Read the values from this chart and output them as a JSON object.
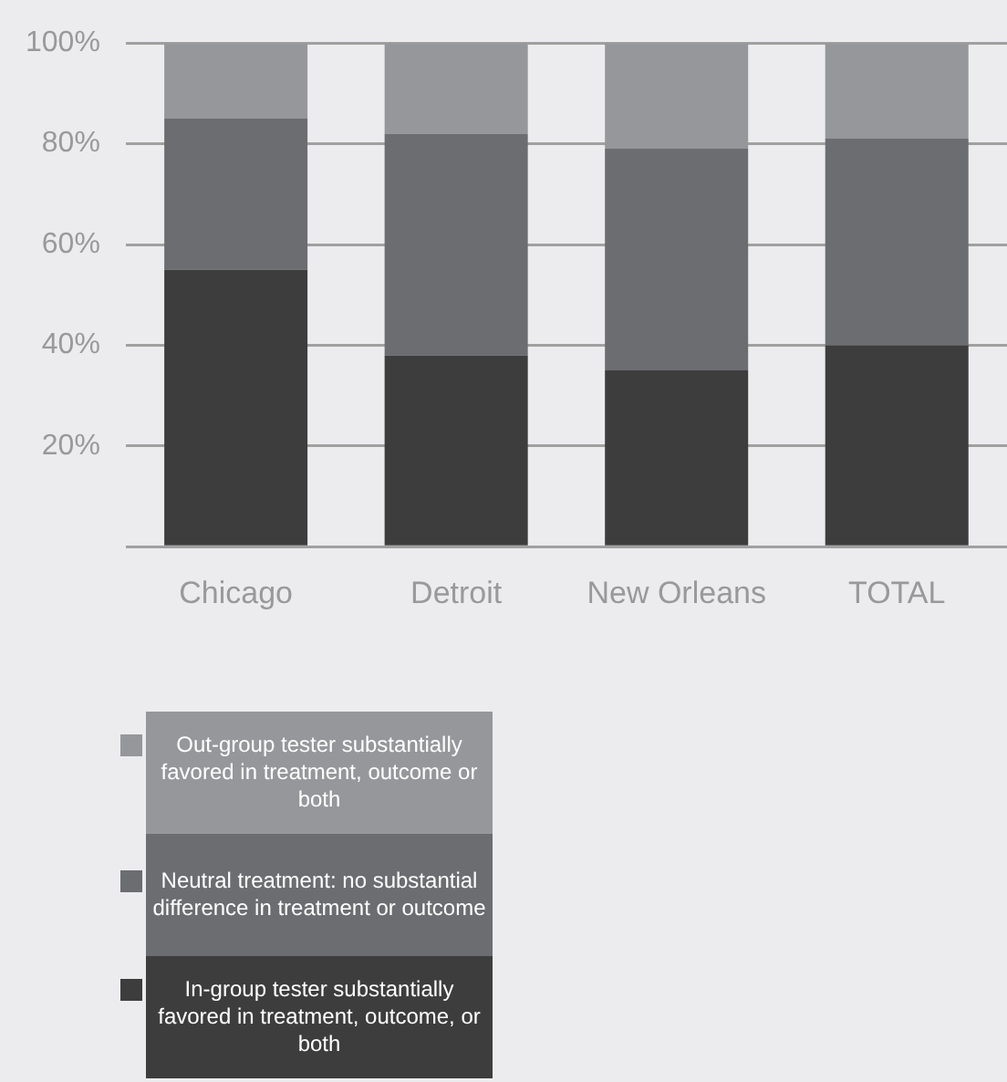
{
  "chart_data": {
    "type": "bar",
    "stacked": true,
    "categories": [
      "Chicago",
      "Detroit",
      "New Orleans",
      "TOTAL"
    ],
    "series": [
      {
        "name": "In-group tester substantially favored in treatment, outcome, or both",
        "color": "#3d3d3d",
        "values": [
          55,
          38,
          35,
          40
        ]
      },
      {
        "name": "Neutral treatment: no substantial difference in treatment or outcome",
        "color": "#6c6d70",
        "values": [
          30,
          44,
          44,
          41
        ]
      },
      {
        "name": "Out-group tester substantially favored in treatment, outcome or both",
        "color": "#96979a",
        "values": [
          15,
          18,
          21,
          19
        ]
      }
    ],
    "ylim": [
      0,
      100
    ],
    "yticks": [
      {
        "value": 0,
        "label": null
      },
      {
        "value": 20,
        "label": "20%"
      },
      {
        "value": 40,
        "label": "40%"
      },
      {
        "value": 60,
        "label": "60%"
      },
      {
        "value": 80,
        "label": "80%"
      },
      {
        "value": 100,
        "label": "100%"
      }
    ],
    "grid": "y",
    "legend": "bottom left"
  }
}
